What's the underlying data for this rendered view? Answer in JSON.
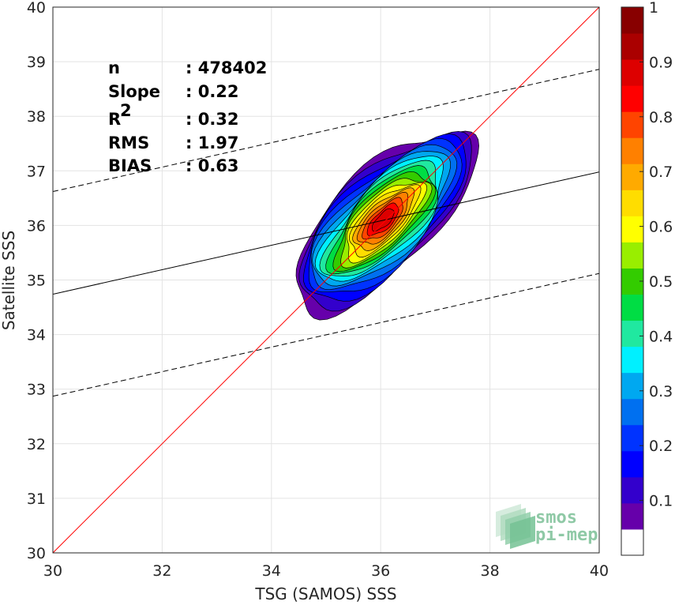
{
  "chart_data": {
    "type": "heatmap",
    "subtype": "density-contour",
    "xlabel": "TSG (SAMOS) SSS",
    "ylabel": "Satellite SSS",
    "xlim": [
      30,
      40
    ],
    "ylim": [
      30,
      40
    ],
    "xticks": [
      "30",
      "32",
      "34",
      "36",
      "38",
      "40"
    ],
    "yticks": [
      "30",
      "31",
      "32",
      "33",
      "34",
      "35",
      "36",
      "37",
      "38",
      "39",
      "40"
    ],
    "grid": true,
    "stats": [
      {
        "key": "n",
        "value": ": 478402"
      },
      {
        "key": "Slope",
        "value": ": 0.22"
      },
      {
        "key": "R",
        "sup": "2",
        "value": ": 0.32"
      },
      {
        "key": "RMS",
        "value": ": 1.97"
      },
      {
        "key": "BIAS",
        "value": ": 0.63"
      }
    ],
    "lines": {
      "identity": {
        "color": "#ff0000",
        "points": [
          [
            30,
            30
          ],
          [
            40,
            40
          ]
        ]
      },
      "regression": {
        "color": "#000000",
        "style": "solid",
        "points": [
          [
            30,
            34.74
          ],
          [
            40,
            36.98
          ]
        ]
      },
      "upper_band": {
        "color": "#000000",
        "style": "dashed",
        "points": [
          [
            30,
            36.62
          ],
          [
            40,
            38.86
          ]
        ]
      },
      "lower_band": {
        "color": "#000000",
        "style": "dashed",
        "points": [
          [
            30,
            32.87
          ],
          [
            40,
            35.12
          ]
        ]
      }
    },
    "density_peak": {
      "x": 36.05,
      "y": 36.1,
      "value": 1.0
    },
    "contour_levels": [
      0.05,
      0.15,
      0.25,
      0.35,
      0.45,
      0.55,
      0.65,
      0.75,
      0.85,
      0.95
    ],
    "colorbar": {
      "range": [
        0,
        1
      ],
      "ticks": [
        "0.1",
        "0.2",
        "0.3",
        "0.4",
        "0.5",
        "0.6",
        "0.7",
        "0.8",
        "0.9",
        "1"
      ],
      "colors": [
        "#ffffff",
        "#6600aa",
        "#3300cc",
        "#0000ff",
        "#0033ff",
        "#0070f0",
        "#00a8f0",
        "#00f0ff",
        "#20e8a0",
        "#00dd44",
        "#33cc00",
        "#99ee00",
        "#ffff00",
        "#ffdd00",
        "#ffaa00",
        "#ff8000",
        "#ff4400",
        "#ff0000",
        "#dd0000",
        "#aa0000",
        "#880000"
      ]
    },
    "logo": [
      "smos",
      "pi-mep"
    ]
  }
}
